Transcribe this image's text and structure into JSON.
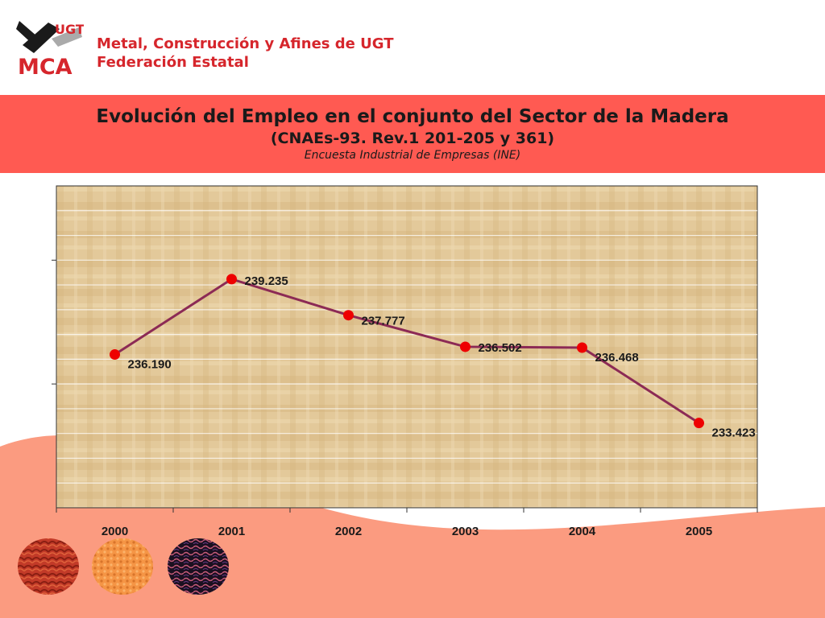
{
  "header": {
    "logo_text_top": "UGT",
    "logo_text_bottom": "MCA",
    "org_line1": "Metal, Construcción y Afines de UGT",
    "org_line2": "Federación Estatal"
  },
  "banner": {
    "title": "Evolución del Empleo en el conjunto del Sector de la Madera",
    "subtitle": "(CNAEs-93. Rev.1 201-205 y 361)",
    "source": "Encuesta Industrial de Empresas (INE)"
  },
  "colors": {
    "brand_red": "#d6262c",
    "banner": "#ff5a52",
    "wave": "#fb9b80",
    "line": "#8c2a55",
    "marker": "#ee0000",
    "plot_bg": "#e3c99a"
  },
  "chart_data": {
    "type": "line",
    "title": "",
    "xlabel": "",
    "ylabel": "",
    "categories": [
      "2000",
      "2001",
      "2002",
      "2003",
      "2004",
      "2005"
    ],
    "series": [
      {
        "values": [
          236.19,
          239.235,
          237.777,
          236.502,
          236.468,
          233.423
        ],
        "labels": [
          "236.190",
          "239.235",
          "237.777",
          "236.502",
          "236.468",
          "233.423"
        ]
      }
    ],
    "ylim": [
      230,
      243
    ],
    "grid": true,
    "legend": "none"
  }
}
